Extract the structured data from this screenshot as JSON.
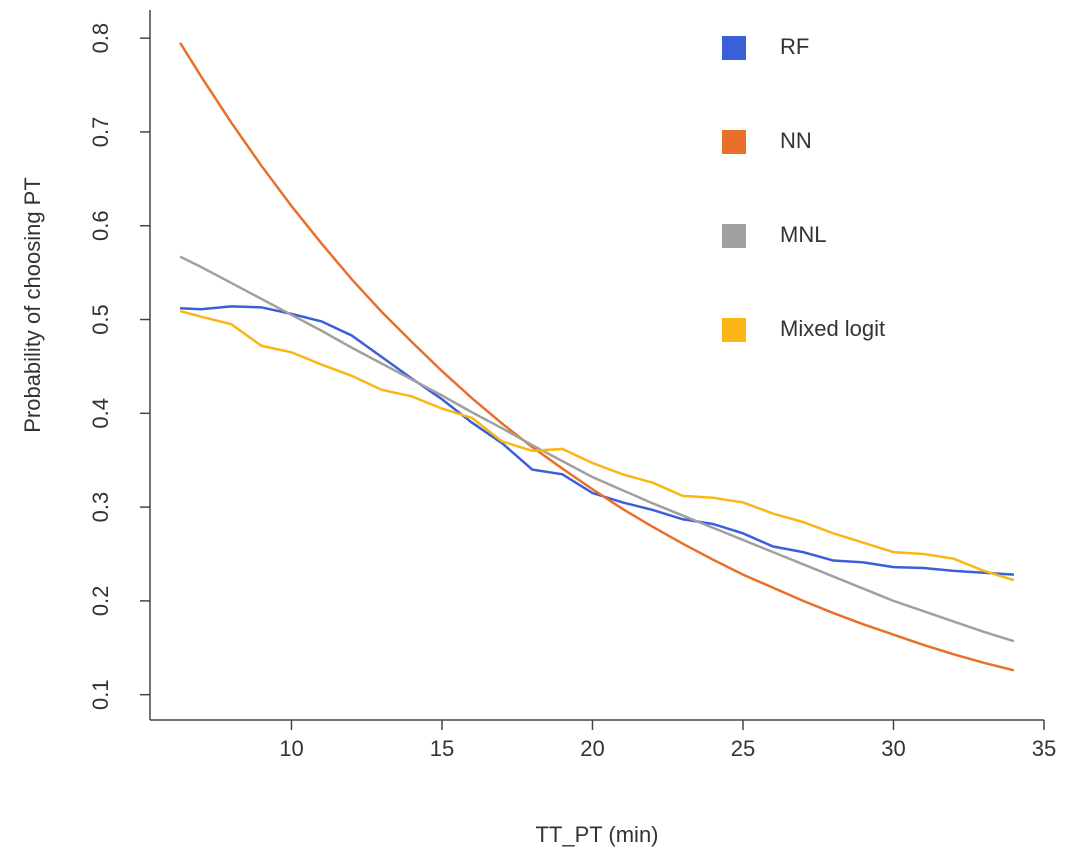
{
  "chart_data": {
    "type": "line",
    "xlabel": "TT_PT (min)",
    "ylabel": "Probability of choosing PT",
    "x": [
      6.3,
      7,
      8,
      9,
      10,
      11,
      12,
      13,
      14,
      15,
      16,
      17,
      18,
      19,
      20,
      21,
      22,
      23,
      24,
      25,
      26,
      27,
      28,
      29,
      30,
      31,
      32,
      33,
      34
    ],
    "series": [
      {
        "name": "RF",
        "color": "#3b5fd8",
        "values": [
          0.512,
          0.511,
          0.514,
          0.513,
          0.506,
          0.498,
          0.483,
          0.46,
          0.437,
          0.415,
          0.39,
          0.368,
          0.34,
          0.335,
          0.315,
          0.305,
          0.297,
          0.287,
          0.282,
          0.272,
          0.258,
          0.252,
          0.243,
          0.241,
          0.236,
          0.235,
          0.232,
          0.23,
          0.228
        ]
      },
      {
        "name": "NN",
        "color": "#e8702a",
        "values": [
          0.795,
          0.759,
          0.71,
          0.664,
          0.621,
          0.581,
          0.543,
          0.508,
          0.476,
          0.445,
          0.416,
          0.389,
          0.364,
          0.341,
          0.319,
          0.298,
          0.279,
          0.261,
          0.244,
          0.228,
          0.214,
          0.2,
          0.187,
          0.175,
          0.164,
          0.153,
          0.143,
          0.134,
          0.126
        ]
      },
      {
        "name": "MNL",
        "color": "#a0a0a0",
        "values": [
          0.567,
          0.556,
          0.539,
          0.522,
          0.505,
          0.488,
          0.47,
          0.453,
          0.436,
          0.419,
          0.401,
          0.384,
          0.366,
          0.349,
          0.332,
          0.318,
          0.304,
          0.291,
          0.278,
          0.265,
          0.252,
          0.239,
          0.226,
          0.213,
          0.2,
          0.189,
          0.178,
          0.167,
          0.157
        ]
      },
      {
        "name": "Mixed logit",
        "color": "#fbb615",
        "values": [
          0.509,
          0.503,
          0.495,
          0.472,
          0.465,
          0.452,
          0.44,
          0.425,
          0.418,
          0.405,
          0.395,
          0.37,
          0.36,
          0.362,
          0.347,
          0.335,
          0.326,
          0.312,
          0.31,
          0.305,
          0.293,
          0.284,
          0.272,
          0.262,
          0.252,
          0.25,
          0.245,
          0.232,
          0.222
        ]
      }
    ],
    "xlim": [
      5.3,
      35
    ],
    "xticks": [
      10,
      15,
      20,
      25,
      30,
      35
    ],
    "ylim": [
      0.073,
      0.83
    ],
    "yticks": [
      0.1,
      0.2,
      0.3,
      0.4,
      0.5,
      0.6,
      0.7,
      0.8
    ],
    "grid": false,
    "legend": "top-right"
  }
}
